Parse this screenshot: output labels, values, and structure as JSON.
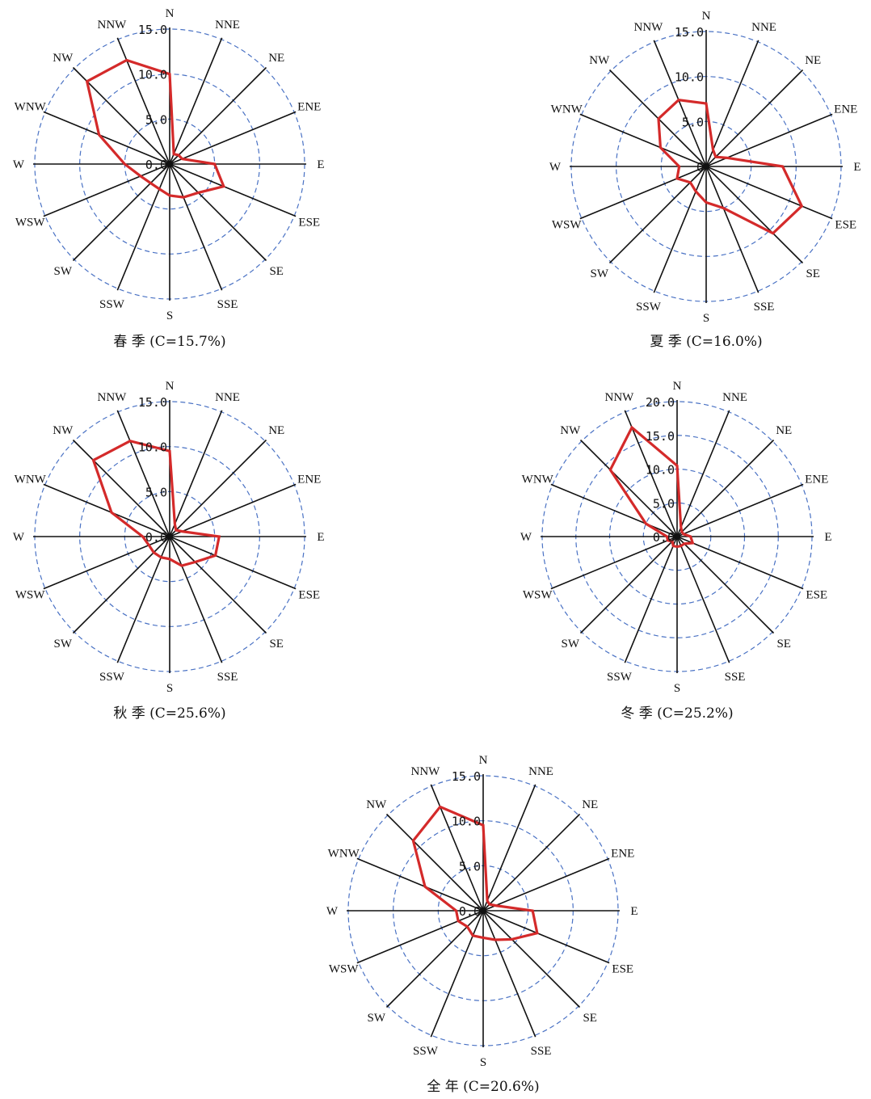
{
  "directions": [
    "N",
    "NNE",
    "NE",
    "ENE",
    "E",
    "ESE",
    "SE",
    "SSE",
    "S",
    "SSW",
    "SW",
    "WSW",
    "W",
    "WNW",
    "NW",
    "NNW"
  ],
  "colors": {
    "series": "#d42a2a",
    "axis": "#111111",
    "grid": "#4a72c4"
  },
  "chart_data": [
    {
      "type": "radar",
      "caption": "春 季 (C=15.7%)",
      "season": "春季",
      "calm_percent": 15.7,
      "rmax": 15.0,
      "ticks": [
        "0.0",
        "5.0",
        "10.0",
        "15.0"
      ],
      "tick_values": [
        0,
        5,
        10,
        15
      ],
      "values": [
        10.0,
        1.2,
        1.4,
        1.5,
        5.0,
        6.5,
        4.5,
        4.0,
        3.5,
        3.0,
        3.0,
        3.5,
        5.0,
        8.5,
        13.0,
        12.5
      ]
    },
    {
      "type": "radar",
      "caption": "夏 季 (C=16.0%)",
      "season": "夏季",
      "calm_percent": 16.0,
      "rmax": 15.0,
      "ticks": [
        "0",
        "5.0",
        "10.0",
        "15.0"
      ],
      "tick_values": [
        0,
        5,
        10,
        15
      ],
      "values": [
        7.0,
        2.0,
        1.5,
        2.5,
        8.5,
        11.5,
        10.5,
        5.0,
        4.0,
        3.0,
        2.5,
        3.5,
        3.0,
        5.5,
        7.5,
        8.0
      ]
    },
    {
      "type": "radar",
      "caption": "秋 季 (C=25.6%)",
      "season": "秋季",
      "calm_percent": 25.6,
      "rmax": 15.0,
      "ticks": [
        "0.0",
        "5.0",
        "10.0",
        "15.0"
      ],
      "tick_values": [
        0,
        5,
        10,
        15
      ],
      "values": [
        9.5,
        1.5,
        1.0,
        1.5,
        5.5,
        5.5,
        4.0,
        3.5,
        2.5,
        2.5,
        2.5,
        2.5,
        3.0,
        7.0,
        12.0,
        11.5
      ]
    },
    {
      "type": "radar",
      "caption": "冬 季 (C=25.2%)",
      "season": "冬季",
      "calm_percent": 25.2,
      "rmax": 20.0,
      "ticks": [
        "0.0",
        "5.0",
        "10.0",
        "15.0",
        "20.0"
      ],
      "tick_values": [
        0,
        5,
        10,
        15,
        20
      ],
      "values": [
        10.5,
        1.5,
        1.0,
        1.0,
        2.0,
        2.5,
        1.5,
        1.5,
        1.5,
        1.5,
        1.0,
        1.5,
        1.5,
        5.0,
        14.0,
        17.5
      ]
    },
    {
      "type": "radar",
      "caption": "全 年 (C=20.6%)",
      "season": "全年",
      "calm_percent": 20.6,
      "rmax": 15.0,
      "ticks": [
        "0.0",
        "5.0",
        "10.0",
        "15.0"
      ],
      "tick_values": [
        0,
        5,
        10,
        15
      ],
      "values": [
        9.5,
        1.2,
        1.0,
        1.5,
        5.5,
        6.5,
        4.5,
        3.5,
        3.0,
        3.0,
        2.5,
        3.0,
        3.0,
        7.0,
        11.0,
        12.5
      ]
    }
  ]
}
